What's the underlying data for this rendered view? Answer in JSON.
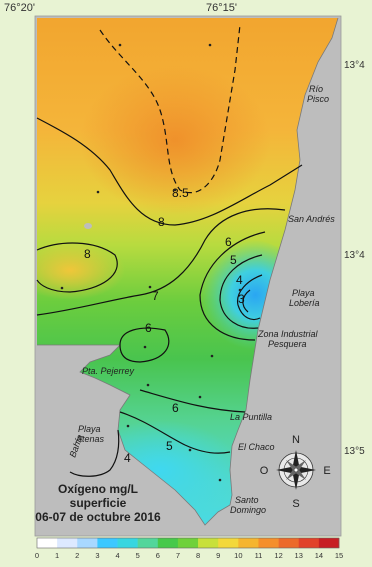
{
  "coords": {
    "top": [
      "76°20'",
      "76°15'"
    ],
    "right": [
      "13°4",
      "13°4",
      "13°5"
    ]
  },
  "places": {
    "rio_pisco_1": "Río",
    "rio_pisco_2": "Pisco",
    "san_andres": "San Andrés",
    "playa_loberia_1": "Playa",
    "playa_loberia_2": "Lobería",
    "zona_industrial_1": "Zona Industrial",
    "zona_industrial_2": "Pesquera",
    "pta_pejerrey": "Pta. Pejerrey",
    "la_puntilla": "La Puntilla",
    "playa_atenas_1": "Playa",
    "playa_atenas_2": "Atenas",
    "bahia": "Bahía",
    "el_chaco": "El Chaco",
    "santo_domingo_1": "Santo",
    "santo_domingo_2": "Domingo"
  },
  "contour_labels": [
    "8.5",
    "8",
    "8",
    "7",
    "6",
    "6",
    "6",
    "5",
    "4",
    "3",
    "5",
    "4"
  ],
  "legend": {
    "line1": "Oxígeno mg/L",
    "line2": "superficie",
    "line3": "06-07 de octubre 2016"
  },
  "compass": {
    "n": "N",
    "s": "S",
    "e": "E",
    "o": "O"
  },
  "colorbar": {
    "ticks": [
      "0",
      "1",
      "2",
      "3",
      "4",
      "5",
      "6",
      "7",
      "8",
      "9",
      "10",
      "11",
      "12",
      "13",
      "14",
      "15"
    ],
    "colors": [
      "#ffffff",
      "#dde9ff",
      "#a8d8ff",
      "#3cc8ff",
      "#37d6e0",
      "#52d69b",
      "#47c94a",
      "#6fd13a",
      "#c8e03a",
      "#f3d83a",
      "#f5b52f",
      "#f58f2b",
      "#ec6a2a",
      "#e1422a",
      "#c71f24"
    ]
  },
  "chart_data": {
    "type": "heatmap",
    "title": "Oxígeno mg/L superficie 06-07 de octubre 2016",
    "contour_levels": [
      3,
      4,
      5,
      6,
      7,
      8,
      8.5
    ],
    "color_scale_range": [
      0,
      15
    ]
  }
}
